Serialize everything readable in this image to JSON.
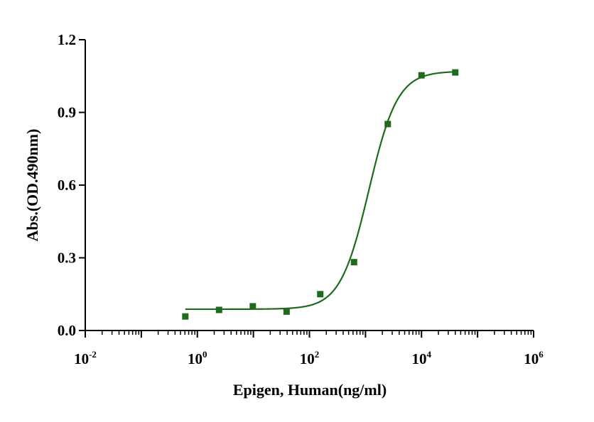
{
  "chart_data": {
    "type": "scatter",
    "xscale": "log",
    "xlabel": "Epigen, Human(ng/ml)",
    "ylabel": "Abs.(OD.490nm)",
    "xlim": [
      0.01,
      1000000
    ],
    "ylim": [
      0.0,
      1.2
    ],
    "yticks": [
      {
        "value": 0.0,
        "label": "0.0"
      },
      {
        "value": 0.3,
        "label": "0.3"
      },
      {
        "value": 0.6,
        "label": "0.6"
      },
      {
        "value": 0.9,
        "label": "0.9"
      },
      {
        "value": 1.2,
        "label": "1.2"
      }
    ],
    "xticks": [
      {
        "value": 0.01,
        "base": "10",
        "exp": "-2"
      },
      {
        "value": 1,
        "base": "10",
        "exp": "0"
      },
      {
        "value": 100,
        "base": "10",
        "exp": "2"
      },
      {
        "value": 10000,
        "base": "10",
        "exp": "4"
      },
      {
        "value": 1000000,
        "base": "10",
        "exp": "6"
      }
    ],
    "grid": false,
    "legend": "none",
    "color": "#1e6b1e",
    "series": [
      {
        "marker": "square",
        "x": [
          0.61,
          2.44,
          9.77,
          39.1,
          156,
          625,
          2500,
          10000,
          40000
        ],
        "y": [
          0.058,
          0.085,
          0.1,
          0.078,
          0.15,
          0.282,
          0.852,
          1.053,
          1.065
        ]
      }
    ],
    "fit": {
      "model": "4PL",
      "bottom": 0.088,
      "top": 1.07,
      "ec50": 1150,
      "hill": 1.7,
      "x_range": [
        0.61,
        40000
      ]
    }
  }
}
